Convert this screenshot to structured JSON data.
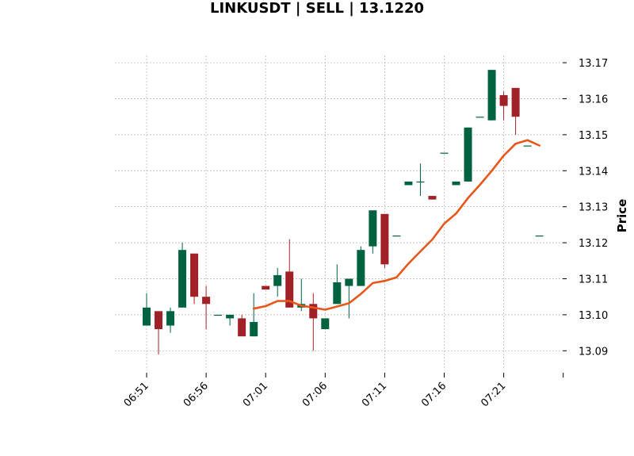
{
  "chart_data": {
    "type": "candlestick",
    "title": "LINKUSDT | SELL | 13.1220",
    "ylabel": "Price",
    "ylim": [
      13.085,
      13.172
    ],
    "y_ticks": [
      13.09,
      13.1,
      13.11,
      13.12,
      13.13,
      13.14,
      13.15,
      13.16,
      13.17
    ],
    "y_tick_labels": [
      "13.09",
      "13.10",
      "13.11",
      "13.12",
      "13.13",
      "13.14",
      "13.15",
      "13.16",
      "13.17"
    ],
    "x_ticks": [
      0,
      5,
      10,
      15,
      20,
      25,
      30,
      35
    ],
    "x_tick_labels": [
      "06:51",
      "06:56",
      "07:01",
      "07:06",
      "07:11",
      "07:16",
      "07:21",
      ""
    ],
    "grid": true,
    "colors": {
      "up": "#006340",
      "down": "#a02128",
      "ma": "#e8571a",
      "grid": "#b0b0b0"
    },
    "candles": [
      {
        "t": 0,
        "o": 13.097,
        "h": 13.106,
        "l": 13.097,
        "c": 13.102
      },
      {
        "t": 1,
        "o": 13.101,
        "h": 13.101,
        "l": 13.089,
        "c": 13.096
      },
      {
        "t": 2,
        "o": 13.097,
        "h": 13.102,
        "l": 13.095,
        "c": 13.101
      },
      {
        "t": 3,
        "o": 13.102,
        "h": 13.12,
        "l": 13.102,
        "c": 13.118
      },
      {
        "t": 4,
        "o": 13.117,
        "h": 13.117,
        "l": 13.103,
        "c": 13.105
      },
      {
        "t": 5,
        "o": 13.105,
        "h": 13.108,
        "l": 13.096,
        "c": 13.103
      },
      {
        "t": 6,
        "o": 13.1,
        "h": 13.1,
        "l": 13.1,
        "c": 13.1
      },
      {
        "t": 7,
        "o": 13.099,
        "h": 13.1,
        "l": 13.097,
        "c": 13.1
      },
      {
        "t": 8,
        "o": 13.099,
        "h": 13.1,
        "l": 13.094,
        "c": 13.094
      },
      {
        "t": 9,
        "o": 13.094,
        "h": 13.106,
        "l": 13.094,
        "c": 13.098
      },
      {
        "t": 10,
        "o": 13.108,
        "h": 13.108,
        "l": 13.107,
        "c": 13.107
      },
      {
        "t": 11,
        "o": 13.108,
        "h": 13.113,
        "l": 13.105,
        "c": 13.111
      },
      {
        "t": 12,
        "o": 13.112,
        "h": 13.121,
        "l": 13.102,
        "c": 13.102
      },
      {
        "t": 13,
        "o": 13.102,
        "h": 13.11,
        "l": 13.101,
        "c": 13.103
      },
      {
        "t": 14,
        "o": 13.103,
        "h": 13.106,
        "l": 13.09,
        "c": 13.099
      },
      {
        "t": 15,
        "o": 13.096,
        "h": 13.099,
        "l": 13.096,
        "c": 13.099
      },
      {
        "t": 16,
        "o": 13.103,
        "h": 13.114,
        "l": 13.103,
        "c": 13.109
      },
      {
        "t": 17,
        "o": 13.108,
        "h": 13.11,
        "l": 13.099,
        "c": 13.11
      },
      {
        "t": 18,
        "o": 13.108,
        "h": 13.119,
        "l": 13.108,
        "c": 13.118
      },
      {
        "t": 19,
        "o": 13.119,
        "h": 13.129,
        "l": 13.117,
        "c": 13.129
      },
      {
        "t": 20,
        "o": 13.128,
        "h": 13.128,
        "l": 13.113,
        "c": 13.114
      },
      {
        "t": 21,
        "o": 13.122,
        "h": 13.122,
        "l": 13.122,
        "c": 13.122
      },
      {
        "t": 22,
        "o": 13.136,
        "h": 13.137,
        "l": 13.136,
        "c": 13.137
      },
      {
        "t": 23,
        "o": 13.137,
        "h": 13.142,
        "l": 13.133,
        "c": 13.137
      },
      {
        "t": 24,
        "o": 13.133,
        "h": 13.133,
        "l": 13.132,
        "c": 13.132
      },
      {
        "t": 25,
        "o": 13.145,
        "h": 13.145,
        "l": 13.145,
        "c": 13.145
      },
      {
        "t": 26,
        "o": 13.136,
        "h": 13.137,
        "l": 13.136,
        "c": 13.137
      },
      {
        "t": 27,
        "o": 13.137,
        "h": 13.152,
        "l": 13.137,
        "c": 13.152
      },
      {
        "t": 28,
        "o": 13.155,
        "h": 13.155,
        "l": 13.155,
        "c": 13.155
      },
      {
        "t": 29,
        "o": 13.154,
        "h": 13.168,
        "l": 13.154,
        "c": 13.168
      },
      {
        "t": 30,
        "o": 13.161,
        "h": 13.162,
        "l": 13.154,
        "c": 13.158
      },
      {
        "t": 31,
        "o": 13.163,
        "h": 13.163,
        "l": 13.15,
        "c": 13.155
      },
      {
        "t": 32,
        "o": 13.147,
        "h": 13.147,
        "l": 13.147,
        "c": 13.147
      },
      {
        "t": 33,
        "o": 13.122,
        "h": 13.122,
        "l": 13.122,
        "c": 13.122
      }
    ],
    "ma": {
      "x": [
        9,
        10,
        11,
        12,
        13,
        14,
        15,
        16,
        17,
        18,
        19,
        20,
        21,
        22,
        23,
        24,
        25,
        26,
        27,
        28,
        29,
        30,
        31,
        32,
        33
      ],
      "y": [
        13.1017,
        13.1024,
        13.1038,
        13.1038,
        13.1025,
        13.102,
        13.1014,
        13.1023,
        13.1032,
        13.1058,
        13.1088,
        13.1094,
        13.1104,
        13.1142,
        13.1176,
        13.1209,
        13.1253,
        13.1281,
        13.1324,
        13.1361,
        13.14,
        13.1442,
        13.1475,
        13.1485,
        13.147
      ]
    }
  }
}
